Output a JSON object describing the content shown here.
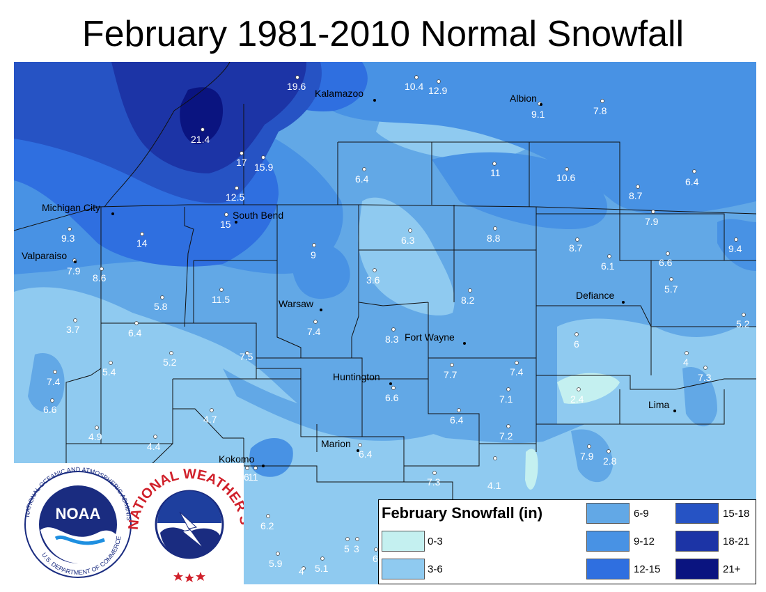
{
  "title": "February 1981-2010 Normal Snowfall",
  "colors": {
    "c0_3": "#c4f0f0",
    "c3_6": "#8fcaf0",
    "c6_9": "#62a8e6",
    "c9_12": "#4892e4",
    "c12_15": "#2f6fe0",
    "c15_18": "#2653c4",
    "c18_21": "#1c34a6",
    "c21plus": "#0a1480"
  },
  "legend": {
    "title": "February Snowfall (in)",
    "classes": [
      {
        "label": "0-3",
        "color": "#c4f0f0"
      },
      {
        "label": "3-6",
        "color": "#8fcaf0"
      },
      {
        "label": "6-9",
        "color": "#62a8e6"
      },
      {
        "label": "9-12",
        "color": "#4892e4"
      },
      {
        "label": "12-15",
        "color": "#2f6fe0"
      },
      {
        "label": "15-18",
        "color": "#2653c4"
      },
      {
        "label": "18-21",
        "color": "#1c34a6"
      },
      {
        "label": "21+",
        "color": "#0a1480"
      }
    ]
  },
  "cities": [
    "Kalamazoo",
    "Albion",
    "Michigan City",
    "South Bend",
    "Valparaiso",
    "Warsaw",
    "Defiance",
    "Fort Wayne",
    "Huntington",
    "Lima",
    "Marion",
    "Kokomo"
  ],
  "station_values": [
    "19.6",
    "10.4",
    "12.9",
    "9.1",
    "7.8",
    "21.4",
    "17",
    "15.9",
    "6.4",
    "11",
    "10.6",
    "6.4",
    "12.5",
    "8.7",
    "15",
    "7.9",
    "9.3",
    "14",
    "6.3",
    "8.8",
    "8.7",
    "9",
    "9.4",
    "6.1",
    "6.6",
    "7.9",
    "8.6",
    "3.6",
    "5.7",
    "11.5",
    "5.8",
    "8.2",
    "3.7",
    "7.4",
    "5.2",
    "6.4",
    "8.3",
    "6",
    "5.2",
    "7.5",
    "4",
    "5.4",
    "7.7",
    "7.4",
    "7.3",
    "7.4",
    "6.6",
    "7.1",
    "2.4",
    "6.6",
    "4.7",
    "6.4",
    "4.9",
    "7.2",
    "4.4",
    "7.9",
    "2.8",
    "6.4",
    "7.3",
    "4.1",
    "6",
    "11",
    "6.2",
    "5",
    "3",
    "5.9",
    "5.1",
    "4",
    "6"
  ],
  "logos": {
    "noaa_text": "NOAA",
    "noaa_ring_top": "NATIONAL OCEANIC AND ATMOSPHERIC ADMINISTRATION",
    "noaa_ring_bottom": "U.S. DEPARTMENT OF COMMERCE",
    "nws_ring_top": "NATIONAL WEATHER SERVICE"
  }
}
